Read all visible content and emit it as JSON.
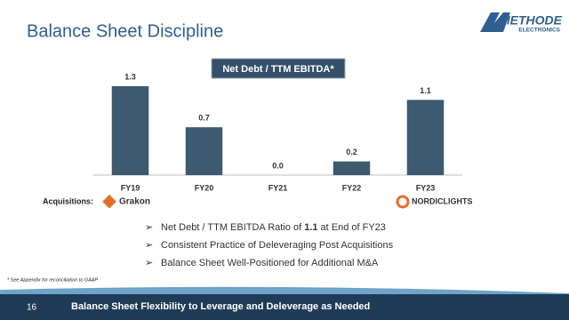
{
  "header": {
    "title": "Balance Sheet Discipline",
    "logo": "METHODE",
    "logo_sub": "ELECTRONICS"
  },
  "chart_data": {
    "type": "bar",
    "title": "Net Debt / TTM EBITDA*",
    "categories": [
      "FY19",
      "FY20",
      "FY21",
      "FY22",
      "FY23"
    ],
    "values": [
      1.3,
      0.7,
      0.0,
      0.2,
      1.1
    ],
    "value_labels": [
      "1.3",
      "0.7",
      "0.0",
      "0.2",
      "1.1"
    ],
    "color": "#3e5a70",
    "ylim": [
      0,
      1.3
    ]
  },
  "acquisitions": {
    "label": "Acquisitions:",
    "items": [
      "Grakon",
      "NORDICLIGHTS"
    ]
  },
  "bullets": [
    {
      "before": "Net Debt / TTM EBITDA Ratio of ",
      "bold": "1.1",
      "after": " at End of FY23"
    },
    {
      "before": "Consistent Practice of Deleveraging Post Acquisitions"
    },
    {
      "before": "Balance Sheet Well-Positioned for Additional M&A"
    }
  ],
  "footnote": "* See Appendix for reconciliation to GAAP",
  "footer": {
    "page": "16",
    "text": "Balance Sheet Flexibility to Leverage and Deleverage as Needed"
  }
}
